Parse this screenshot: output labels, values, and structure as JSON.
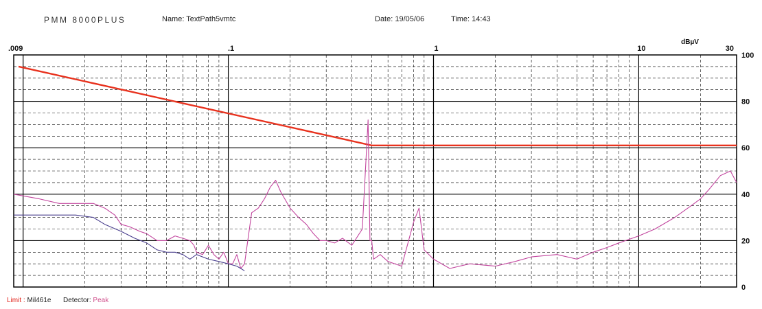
{
  "header": {
    "instrument": "PMM 8000PLUS",
    "name": "Name: TextPath5vmtc",
    "date": "Date: 19/05/06",
    "time": "Time: 14:43"
  },
  "footer": {
    "limit_label": "Limit :",
    "limit_value": "Mil461e",
    "detector_label": "Detector:",
    "detector_value": "Peak"
  },
  "colors": {
    "limit": "#e8321e",
    "peak": "#c2459e",
    "average": "#4a3f8e",
    "grid_major": "#000000",
    "grid_minor": "#000000"
  },
  "chart_data": {
    "type": "line",
    "title": "",
    "unit_label": "dBµV",
    "xscale": "log",
    "xlim": [
      0.009,
      30
    ],
    "ylim": [
      0,
      100
    ],
    "x_tick_labels": [
      {
        "x": 0.009,
        "label": ".009"
      },
      {
        "x": 0.1,
        "label": ".1"
      },
      {
        "x": 1,
        "label": "1"
      },
      {
        "x": 10,
        "label": "10"
      },
      {
        "x": 30,
        "label": "30"
      }
    ],
    "y_tick_labels": [
      {
        "y": 100,
        "label": "100"
      },
      {
        "y": 80,
        "label": "80"
      },
      {
        "y": 60,
        "label": "60"
      },
      {
        "y": 40,
        "label": "40"
      },
      {
        "y": 20,
        "label": "20"
      },
      {
        "y": 0,
        "label": "0"
      }
    ],
    "grid": true,
    "series": [
      {
        "name": "Limit",
        "x": [
          0.0095,
          0.5,
          30
        ],
        "y": [
          95,
          61,
          61
        ]
      },
      {
        "name": "Peak",
        "x": [
          0.009,
          0.012,
          0.015,
          0.018,
          0.022,
          0.025,
          0.028,
          0.03,
          0.033,
          0.037,
          0.04,
          0.045,
          0.05,
          0.055,
          0.06,
          0.065,
          0.068,
          0.07,
          0.075,
          0.08,
          0.085,
          0.09,
          0.095,
          0.1,
          0.105,
          0.11,
          0.115,
          0.12,
          0.13,
          0.14,
          0.15,
          0.16,
          0.17,
          0.18,
          0.2,
          0.22,
          0.24,
          0.26,
          0.28,
          0.3,
          0.33,
          0.36,
          0.4,
          0.45,
          0.48,
          0.49,
          0.5,
          0.51,
          0.55,
          0.6,
          0.7,
          0.8,
          0.85,
          0.9,
          1.0,
          1.2,
          1.5,
          2.0,
          2.5,
          3.0,
          4.0,
          5.0,
          6.0,
          7.0,
          8.0,
          10.0,
          12.0,
          15.0,
          18.0,
          20.0,
          22.0,
          25.0,
          28.0,
          30.0
        ],
        "y": [
          40,
          38,
          36,
          36,
          36,
          34,
          31,
          27,
          26,
          24,
          23,
          20,
          20,
          22,
          21,
          20,
          18,
          15,
          14,
          18,
          14,
          12,
          15,
          10,
          10,
          14,
          8,
          10,
          32,
          34,
          38,
          43,
          46,
          41,
          34,
          30,
          27,
          23,
          20,
          20,
          19,
          21,
          18,
          25,
          72,
          20,
          20,
          12,
          14,
          11,
          9,
          28,
          34,
          16,
          12,
          8,
          10,
          9,
          11,
          13,
          14,
          12,
          15,
          17,
          19,
          22,
          25,
          30,
          35,
          38,
          42,
          48,
          50,
          45
        ]
      },
      {
        "name": "Average",
        "x": [
          0.009,
          0.012,
          0.015,
          0.018,
          0.022,
          0.025,
          0.03,
          0.035,
          0.04,
          0.045,
          0.05,
          0.055,
          0.06,
          0.065,
          0.07,
          0.08,
          0.09,
          0.1,
          0.11,
          0.12
        ],
        "y": [
          31,
          31,
          31,
          31,
          30,
          27,
          24,
          21,
          19,
          16,
          15,
          15,
          14,
          12,
          14,
          12,
          11,
          10,
          9,
          7
        ]
      }
    ]
  }
}
